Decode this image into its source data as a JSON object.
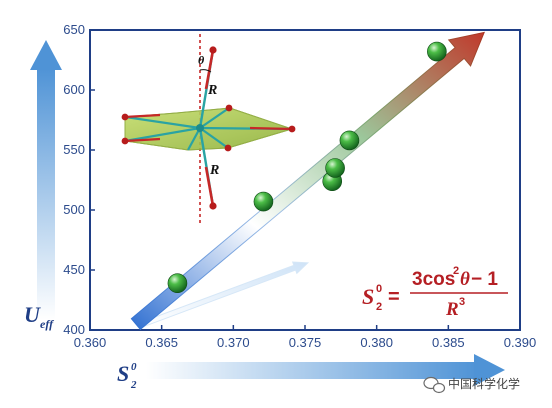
{
  "chart_data": {
    "type": "scatter",
    "xlim": [
      0.36,
      0.39
    ],
    "ylim": [
      400,
      650
    ],
    "x_ticks": [
      "0.360",
      "0.365",
      "0.370",
      "0.375",
      "0.380",
      "0.385",
      "0.390"
    ],
    "y_ticks": [
      "400",
      "450",
      "500",
      "550",
      "600",
      "650"
    ],
    "x_label": {
      "base": "S",
      "sup": "0",
      "sub": "2"
    },
    "y_label": {
      "base": "U",
      "sub": "eff"
    },
    "points": [
      {
        "x": 0.3661,
        "y": 439
      },
      {
        "x": 0.3721,
        "y": 507
      },
      {
        "x": 0.3769,
        "y": 524
      },
      {
        "x": 0.3771,
        "y": 535
      },
      {
        "x": 0.3781,
        "y": 558
      },
      {
        "x": 0.3842,
        "y": 632
      }
    ],
    "trend_start": {
      "x": 0.3632,
      "y": 405
    },
    "trend_end": {
      "x": 0.3875,
      "y": 648
    },
    "secondary_arrow_start": {
      "x": 0.3635,
      "y": 404
    },
    "secondary_arrow_end": {
      "x": 0.3752,
      "y": 456
    },
    "grid": false,
    "colors": {
      "axis": "#1f3e86",
      "point": "#2f9a3a",
      "trend_low": "#2f6fd1",
      "trend_high": "#c0392b",
      "equation": "#b51f24"
    }
  },
  "equation": {
    "lhs_base": "S",
    "lhs_sup": "0",
    "lhs_sub": "2",
    "equals": "=",
    "num_pre": "3cos",
    "num_sup": "2",
    "num_theta": "θ",
    "num_post": " − 1",
    "den_base": "R",
    "den_sup": "3"
  },
  "molecule_labels": {
    "theta": "θ",
    "r_top": "R",
    "r_bottom": "R"
  },
  "watermark": {
    "icon": "wechat-icon",
    "text": "中国科学化学"
  }
}
